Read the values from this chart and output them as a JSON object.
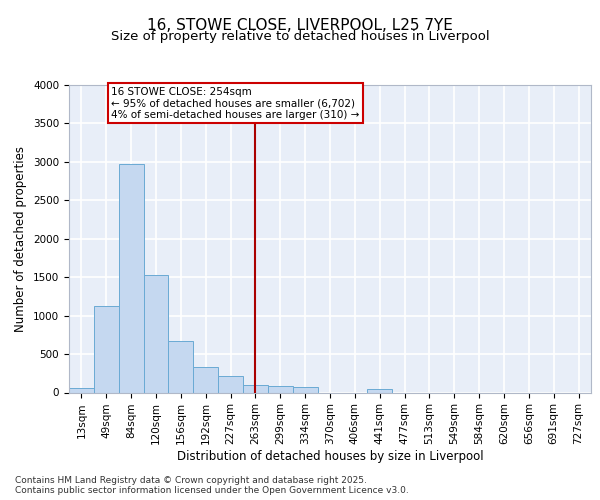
{
  "title": "16, STOWE CLOSE, LIVERPOOL, L25 7YE",
  "subtitle": "Size of property relative to detached houses in Liverpool",
  "xlabel": "Distribution of detached houses by size in Liverpool",
  "ylabel": "Number of detached properties",
  "bar_labels": [
    "13sqm",
    "49sqm",
    "84sqm",
    "120sqm",
    "156sqm",
    "192sqm",
    "227sqm",
    "263sqm",
    "299sqm",
    "334sqm",
    "370sqm",
    "406sqm",
    "441sqm",
    "477sqm",
    "513sqm",
    "549sqm",
    "584sqm",
    "620sqm",
    "656sqm",
    "691sqm",
    "727sqm"
  ],
  "bar_values": [
    60,
    1120,
    2970,
    1530,
    665,
    330,
    210,
    100,
    90,
    75,
    0,
    0,
    40,
    0,
    0,
    0,
    0,
    0,
    0,
    0,
    0
  ],
  "bar_color": "#c5d8f0",
  "bar_edge_color": "#6aaad4",
  "bg_color": "#e8eef8",
  "grid_color": "#d0d8e8",
  "vline_x": 7.0,
  "vline_color": "#aa0000",
  "annotation_text": "16 STOWE CLOSE: 254sqm\n← 95% of detached houses are smaller (6,702)\n4% of semi-detached houses are larger (310) →",
  "annotation_box_color": "#cc0000",
  "ylim": [
    0,
    4000
  ],
  "yticks": [
    0,
    500,
    1000,
    1500,
    2000,
    2500,
    3000,
    3500,
    4000
  ],
  "footer": "Contains HM Land Registry data © Crown copyright and database right 2025.\nContains public sector information licensed under the Open Government Licence v3.0.",
  "title_fontsize": 11,
  "subtitle_fontsize": 9.5,
  "axis_label_fontsize": 8.5,
  "tick_fontsize": 7.5,
  "annotation_fontsize": 7.5,
  "footer_fontsize": 6.5
}
